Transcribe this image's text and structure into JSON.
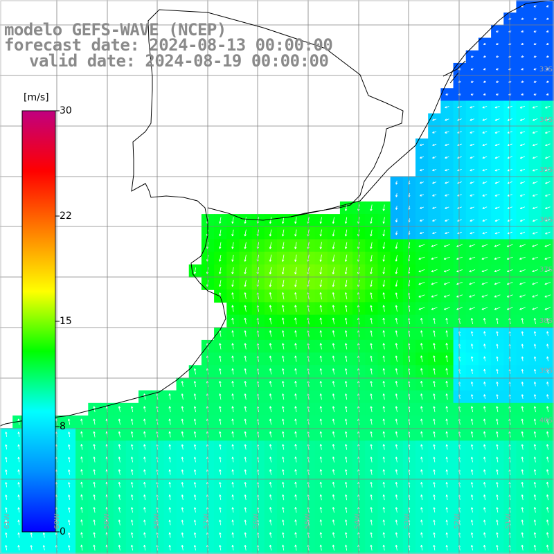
{
  "title": {
    "model": "modelo GEFS-WAVE (NCEP)",
    "forecast": "forecast date: 2024-08-13 00:00:00",
    "valid": "valid date: 2024-08-19 00:00:00"
  },
  "colorbar": {
    "unit": "[m/s]",
    "ticks": [
      "30",
      "22",
      "15",
      "8",
      "0"
    ],
    "tick_values": [
      30,
      22,
      15,
      8,
      0
    ],
    "range": [
      0,
      30
    ],
    "colors": [
      "#0000ff",
      "#0090ff",
      "#00ffff",
      "#00ff00",
      "#ffff00",
      "#ff8000",
      "#ff0000",
      "#c00080"
    ]
  },
  "lat_labels": [
    "33S",
    "34S",
    "35S",
    "36S",
    "37S",
    "38S",
    "39S",
    "40S"
  ],
  "lon_labels": [
    "61W",
    "60W",
    "59W",
    "58W",
    "57W",
    "56W",
    "55W",
    "54W",
    "53W",
    "52W",
    "51W"
  ],
  "map": {
    "field": "wind speed",
    "arrow_color": "#ffffff",
    "coastline_color": "#000000",
    "grid_color": "#808080",
    "background": "#ffffff"
  }
}
